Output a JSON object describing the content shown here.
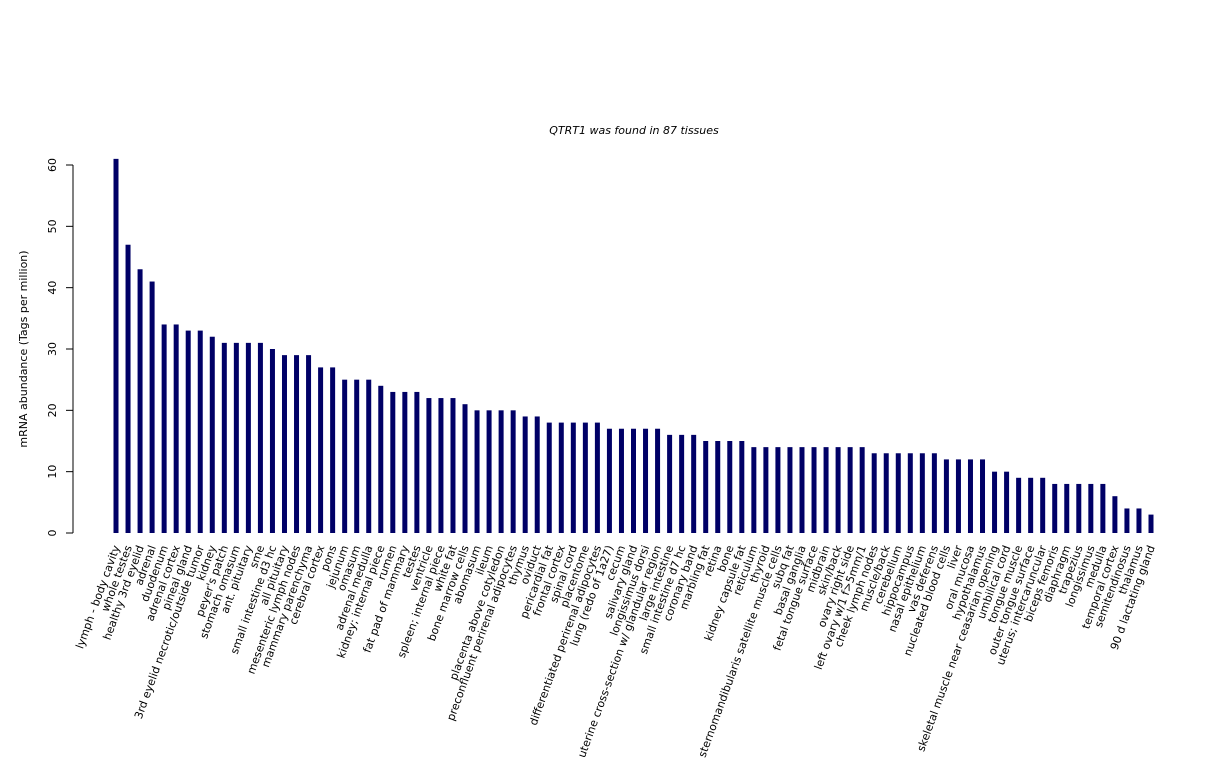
{
  "chart_data": {
    "type": "bar",
    "title": "QTRT1  was found in  87  tissues",
    "y_label": "mRNA abundance (Tags per million)",
    "color": "#000066",
    "ylim": [
      0,
      60
    ],
    "yticks": [
      0,
      10,
      20,
      30,
      40,
      50,
      60
    ],
    "categories": [
      "lymph - body cavity",
      "whole testes",
      "healthy 3rd eyelid",
      "adrenal",
      "duodenum",
      "adrenal cortex",
      "pineal gland",
      "3rd eyelid necrotic/outside tumor",
      "kidney",
      "peyer's patch",
      "stomach omasum",
      "ant. pituitary",
      "sme",
      "small intestine d3 hc",
      "all pituitary",
      "mesenteric lymph nodes",
      "mammary parenchyma",
      "cerebral cortex",
      "pons",
      "jejunum",
      "omasum",
      "adrenal medulla",
      "kidney; internal piece",
      "rumen",
      "fat pad of mammary",
      "testes",
      "ventricle",
      "spleen; internal piece",
      "white fat",
      "bone marrow cells",
      "abomasum",
      "ileum",
      "placenta above cotyledon",
      "preconfluent perirenal adipocytes",
      "thymus",
      "oviduct",
      "pericardial fat",
      "frontal cortex",
      "spinal cord",
      "placentome",
      "differentiated perirenal adipocytes",
      "lung (redo of 1a27)",
      "cecum",
      "salivary gland",
      "longissimus dorsi",
      "uterine cross-section w/ glandular region",
      "large intestine",
      "small intestine d7 hc",
      "coronary band",
      "marbling fat",
      "retina",
      "bone",
      "kidney capsule fat",
      "reticulum",
      "thyroid",
      "sternomandibularis satellite muscle cells",
      "subq fat",
      "basal ganglia",
      "fetal tongue surface",
      "midbrain",
      "skin/back",
      "ovary right side",
      "left ovary w/1 f>5mm/1",
      "cheek lymph nodes",
      "muscle/back",
      "cerebellum",
      "hippocampus",
      "nasal epithelium",
      "vas deferens",
      "nucleated blood cells",
      "liver",
      "oral mucosa",
      "hypothalamus",
      "skeletal muscle near ceasarian opening",
      "umbilical cord",
      "tongue muscle",
      "outer tongue surface",
      "uterus; intercaruncular",
      "biceps femoris",
      "diaphragm",
      "trapezius",
      "longissimus",
      "medulla",
      "temporal cortex",
      "semitendinosus",
      "thalamus",
      "90 d lactating gland"
    ],
    "values": [
      61,
      47,
      43,
      41,
      34,
      34,
      33,
      33,
      32,
      31,
      31,
      31,
      31,
      30,
      29,
      29,
      29,
      27,
      27,
      25,
      25,
      25,
      24,
      23,
      23,
      23,
      22,
      22,
      22,
      21,
      20,
      20,
      20,
      20,
      19,
      19,
      18,
      18,
      18,
      18,
      18,
      17,
      17,
      17,
      17,
      17,
      16,
      16,
      16,
      15,
      15,
      15,
      15,
      14,
      14,
      14,
      14,
      14,
      14,
      14,
      14,
      14,
      14,
      13,
      13,
      13,
      13,
      13,
      13,
      12,
      12,
      12,
      12,
      10,
      10,
      9,
      9,
      9,
      8,
      8,
      8,
      8,
      8,
      6,
      4,
      4,
      3
    ]
  }
}
